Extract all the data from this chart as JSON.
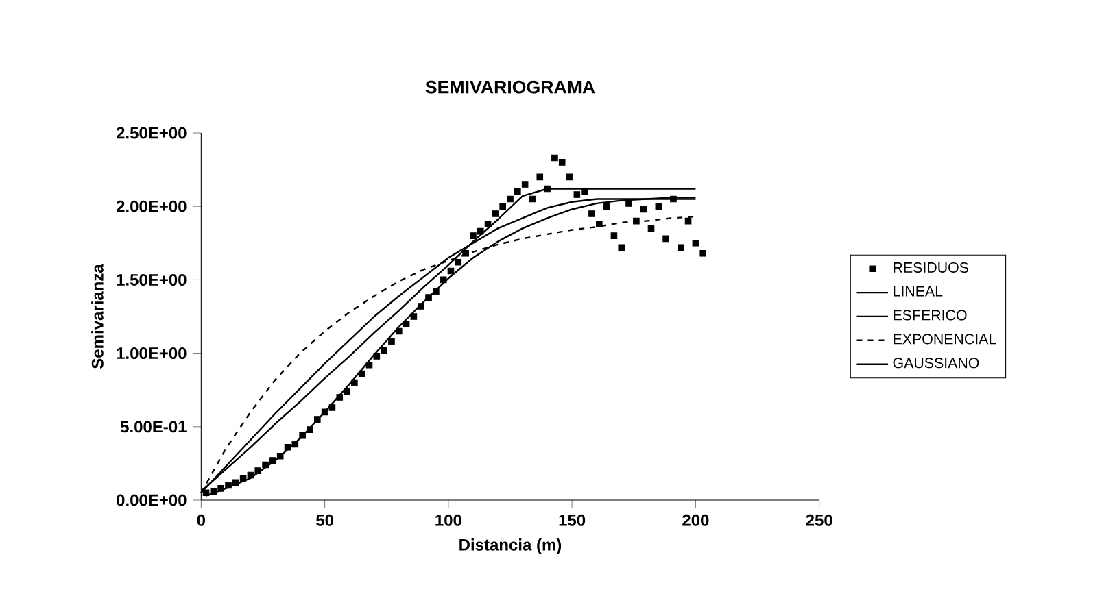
{
  "chart_data": {
    "type": "line",
    "title": "SEMIVARIOGRAMA",
    "xlabel": "Distancia (m)",
    "ylabel": "Semivarianza",
    "xlim": [
      0,
      250
    ],
    "xticks": [
      0,
      50,
      100,
      150,
      200,
      250
    ],
    "ylim": [
      0,
      2.5
    ],
    "yticks": [
      {
        "value": 0,
        "label": "0.00E+00"
      },
      {
        "value": 0.5,
        "label": "5.00E-01"
      },
      {
        "value": 1,
        "label": "1.00E+00"
      },
      {
        "value": 1.5,
        "label": "1.50E+00"
      },
      {
        "value": 2,
        "label": "2.00E+00"
      },
      {
        "value": 2.5,
        "label": "2.50E+00"
      }
    ],
    "grid": false,
    "legend": "right",
    "series": [
      {
        "name": "RESIDUOS",
        "type": "scatter",
        "marker": "square",
        "color": "#000000",
        "x": [
          2,
          5,
          8,
          11,
          14,
          17,
          20,
          23,
          26,
          29,
          32,
          35,
          38,
          41,
          44,
          47,
          50,
          53,
          56,
          59,
          62,
          65,
          68,
          71,
          74,
          77,
          80,
          83,
          86,
          89,
          92,
          95,
          98,
          101,
          104,
          107,
          110,
          113,
          116,
          119,
          122,
          125,
          128,
          131,
          134,
          137,
          140,
          143,
          146,
          149,
          152,
          155,
          158,
          161,
          164,
          167,
          170,
          173,
          176,
          179,
          182,
          185,
          188,
          191,
          194,
          197,
          200,
          203
        ],
        "values": [
          0.05,
          0.06,
          0.08,
          0.1,
          0.12,
          0.15,
          0.17,
          0.2,
          0.24,
          0.27,
          0.3,
          0.36,
          0.38,
          0.44,
          0.48,
          0.55,
          0.6,
          0.63,
          0.7,
          0.74,
          0.8,
          0.86,
          0.92,
          0.98,
          1.02,
          1.08,
          1.15,
          1.2,
          1.25,
          1.32,
          1.38,
          1.42,
          1.5,
          1.56,
          1.62,
          1.68,
          1.8,
          1.83,
          1.88,
          1.95,
          2.0,
          2.05,
          2.1,
          2.15,
          2.05,
          2.2,
          2.12,
          2.33,
          2.3,
          2.2,
          2.08,
          2.1,
          1.95,
          1.88,
          2.0,
          1.8,
          1.72,
          2.02,
          1.9,
          1.98,
          1.85,
          2.0,
          1.78,
          2.05,
          1.72,
          1.9,
          1.75,
          1.68
        ]
      },
      {
        "name": "LINEAL",
        "line_style": "solid",
        "marker": "none",
        "color": "#000000",
        "x": [
          0,
          10,
          20,
          30,
          40,
          50,
          60,
          70,
          80,
          90,
          100,
          110,
          120,
          130,
          140,
          150,
          160,
          170,
          180,
          190,
          200
        ],
        "values": [
          0.06,
          0.21,
          0.36,
          0.52,
          0.67,
          0.83,
          0.98,
          1.14,
          1.29,
          1.45,
          1.6,
          1.76,
          1.91,
          2.07,
          2.12,
          2.12,
          2.12,
          2.12,
          2.12,
          2.12,
          2.12
        ]
      },
      {
        "name": "ESFERICO",
        "line_style": "solid",
        "marker": "none",
        "color": "#000000",
        "x": [
          0,
          10,
          20,
          30,
          40,
          50,
          60,
          70,
          80,
          90,
          100,
          110,
          120,
          130,
          140,
          150,
          160,
          170,
          180,
          190,
          200
        ],
        "values": [
          0.05,
          0.23,
          0.41,
          0.59,
          0.76,
          0.93,
          1.09,
          1.25,
          1.39,
          1.52,
          1.65,
          1.75,
          1.85,
          1.92,
          1.99,
          2.03,
          2.05,
          2.05,
          2.05,
          2.05,
          2.05
        ]
      },
      {
        "name": "EXPONENCIAL",
        "line_style": "dashed",
        "marker": "none",
        "color": "#000000",
        "x": [
          0,
          10,
          20,
          30,
          40,
          50,
          60,
          70,
          80,
          90,
          100,
          110,
          120,
          130,
          140,
          150,
          160,
          170,
          180,
          190,
          200
        ],
        "values": [
          0.05,
          0.35,
          0.6,
          0.82,
          1.0,
          1.15,
          1.28,
          1.39,
          1.49,
          1.57,
          1.63,
          1.69,
          1.74,
          1.78,
          1.81,
          1.84,
          1.86,
          1.89,
          1.9,
          1.92,
          1.93
        ]
      },
      {
        "name": "GAUSSIANO",
        "line_style": "solid",
        "marker": "none",
        "color": "#000000",
        "x": [
          2,
          10,
          20,
          30,
          40,
          50,
          60,
          70,
          80,
          90,
          100,
          110,
          120,
          130,
          140,
          150,
          160,
          170,
          180,
          190,
          200
        ],
        "values": [
          0.03,
          0.08,
          0.15,
          0.27,
          0.42,
          0.6,
          0.79,
          0.99,
          1.18,
          1.35,
          1.51,
          1.65,
          1.76,
          1.85,
          1.92,
          1.98,
          2.02,
          2.04,
          2.05,
          2.06,
          2.06
        ]
      }
    ]
  }
}
